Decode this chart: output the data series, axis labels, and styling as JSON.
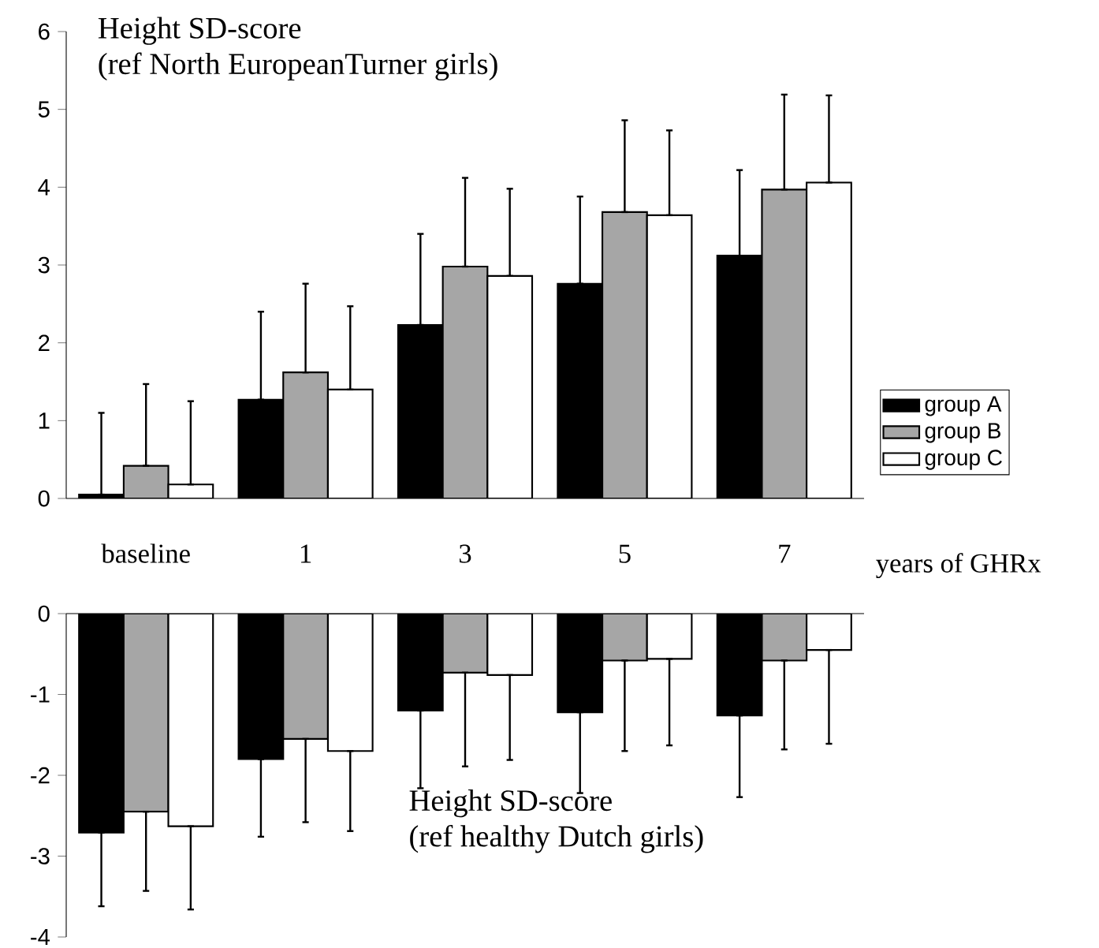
{
  "chart_data": [
    {
      "type": "bar",
      "title": "Height SD-score",
      "subtitle": "(ref North EuropeanTurner girls)",
      "xlabel": "years of GHRx",
      "categories": [
        "baseline",
        "1",
        "3",
        "5",
        "7"
      ],
      "ylim": [
        0,
        6
      ],
      "yticks": [
        0,
        1,
        2,
        3,
        4,
        5,
        6
      ],
      "legend": "right",
      "series": [
        {
          "name": "group A",
          "color": "#000000",
          "values": [
            0.05,
            1.27,
            2.23,
            2.76,
            3.12
          ],
          "errors": [
            [
              0.05,
              1.1
            ],
            [
              1.27,
              2.4
            ],
            [
              2.23,
              3.4
            ],
            [
              2.76,
              3.88
            ],
            [
              3.12,
              4.22
            ]
          ]
        },
        {
          "name": "group B",
          "color": "#a6a6a6",
          "values": [
            0.42,
            1.62,
            2.98,
            3.68,
            3.97
          ],
          "errors": [
            [
              0.42,
              1.47
            ],
            [
              1.62,
              2.76
            ],
            [
              2.98,
              4.12
            ],
            [
              3.68,
              4.86
            ],
            [
              3.97,
              5.19
            ]
          ]
        },
        {
          "name": "group C",
          "color": "#ffffff",
          "values": [
            0.18,
            1.4,
            2.86,
            3.64,
            4.06
          ],
          "errors": [
            [
              0.18,
              1.25
            ],
            [
              1.4,
              2.47
            ],
            [
              2.86,
              3.98
            ],
            [
              3.64,
              4.73
            ],
            [
              4.06,
              5.18
            ]
          ]
        }
      ]
    },
    {
      "type": "bar",
      "title": "Height SD-score",
      "subtitle": "(ref healthy Dutch girls)",
      "categories": [
        null,
        null,
        null,
        null,
        null
      ],
      "ylim": [
        -4,
        0
      ],
      "yticks": [
        -4,
        -3,
        -2,
        -1,
        0
      ],
      "tick_labels": "y",
      "series": [
        {
          "color": "#000000",
          "values": [
            -2.71,
            -1.8,
            -1.2,
            -1.22,
            -1.26
          ],
          "errors": [
            [
              -3.62,
              -2.71
            ],
            [
              -2.76,
              -1.8
            ],
            [
              -2.16,
              -1.2
            ],
            [
              -2.22,
              -1.22
            ],
            [
              -2.27,
              -1.26
            ]
          ]
        },
        {
          "color": "#a6a6a6",
          "values": [
            -2.45,
            -1.55,
            -0.73,
            -0.58,
            -0.58
          ],
          "errors": [
            [
              -3.43,
              -2.45
            ],
            [
              -2.58,
              -1.55
            ],
            [
              -1.89,
              -0.73
            ],
            [
              -1.7,
              -0.58
            ],
            [
              -1.68,
              -0.58
            ]
          ]
        },
        {
          "color": "#ffffff",
          "values": [
            -2.63,
            -1.7,
            -0.76,
            -0.56,
            -0.45
          ],
          "errors": [
            [
              -3.66,
              -2.63
            ],
            [
              -2.69,
              -1.7
            ],
            [
              -1.81,
              -0.76
            ],
            [
              -1.63,
              -0.56
            ],
            [
              -1.61,
              -0.45
            ]
          ]
        }
      ]
    }
  ]
}
